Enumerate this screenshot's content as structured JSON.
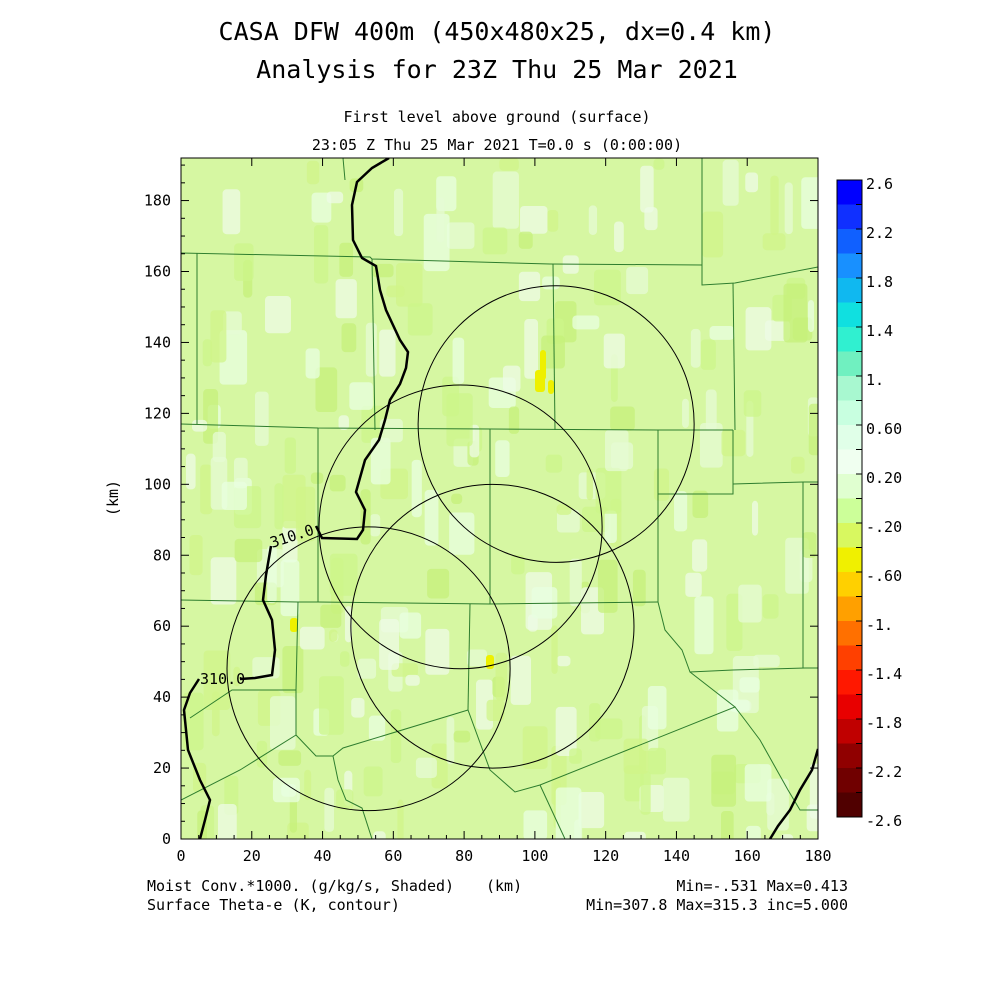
{
  "title": {
    "line1": "CASA DFW 400m (450x480x25, dx=0.4 km)",
    "line2": "Analysis for 23Z Thu 25 Mar 2021",
    "subtitle1": "First level above ground (surface)",
    "subtitle2": "23:05 Z Thu 25 Mar 2021    T=0.0 s (0:00:00)"
  },
  "footer": {
    "left1": "Moist Conv.*1000. (g/kg/s, Shaded)",
    "left2": "Surface Theta-e (K, contour)",
    "units": "(km)",
    "right1": "Min=-.531 Max=0.413",
    "right2": "Min=307.8 Max=315.3 inc=5.000"
  },
  "chart_data": {
    "type": "heatmap",
    "xlabel": "(km)",
    "ylabel": "(km)",
    "xlim": [
      0,
      180
    ],
    "ylim": [
      0,
      192
    ],
    "x_ticks": [
      0,
      20,
      40,
      60,
      80,
      100,
      120,
      140,
      160,
      180
    ],
    "y_ticks": [
      0,
      20,
      40,
      60,
      80,
      100,
      120,
      140,
      160,
      180
    ],
    "field_shaded": "Moist Conv.*1000. (g/kg/s)",
    "field_contour": "Surface Theta-e (K)",
    "shaded_min": -0.531,
    "shaded_max": 0.413,
    "contour_min": 307.8,
    "contour_max": 315.3,
    "contour_inc": 5.0,
    "contour_labels": [
      "310.0",
      "310.0"
    ],
    "radar_rings": [
      {
        "cx": 106,
        "cy": 117,
        "r": 39
      },
      {
        "cx": 79,
        "cy": 88,
        "r": 40
      },
      {
        "cx": 88,
        "cy": 60,
        "r": 40
      },
      {
        "cx": 53,
        "cy": 48,
        "r": 40
      }
    ],
    "colorbar": {
      "labels": [
        "2.6",
        "2.2",
        "1.8",
        "1.4",
        "1.",
        "0.60",
        "0.20",
        "-.20",
        "-.60",
        "-1.",
        "-1.4",
        "-1.8",
        "-2.2",
        "-2.6"
      ],
      "colors": [
        "#0000ff",
        "#1030ff",
        "#1060ff",
        "#1890ff",
        "#10b8f0",
        "#10e0e0",
        "#30f0d0",
        "#70f0c0",
        "#a8f8d0",
        "#c8ffe0",
        "#e0ffe8",
        "#f0fff0",
        "#e0ffd0",
        "#ccff99",
        "#d8f860",
        "#f0f000",
        "#ffd000",
        "#ffa000",
        "#ff7000",
        "#ff4000",
        "#ff1800",
        "#e80000",
        "#c00000",
        "#900000",
        "#700000",
        "#500000"
      ]
    }
  }
}
